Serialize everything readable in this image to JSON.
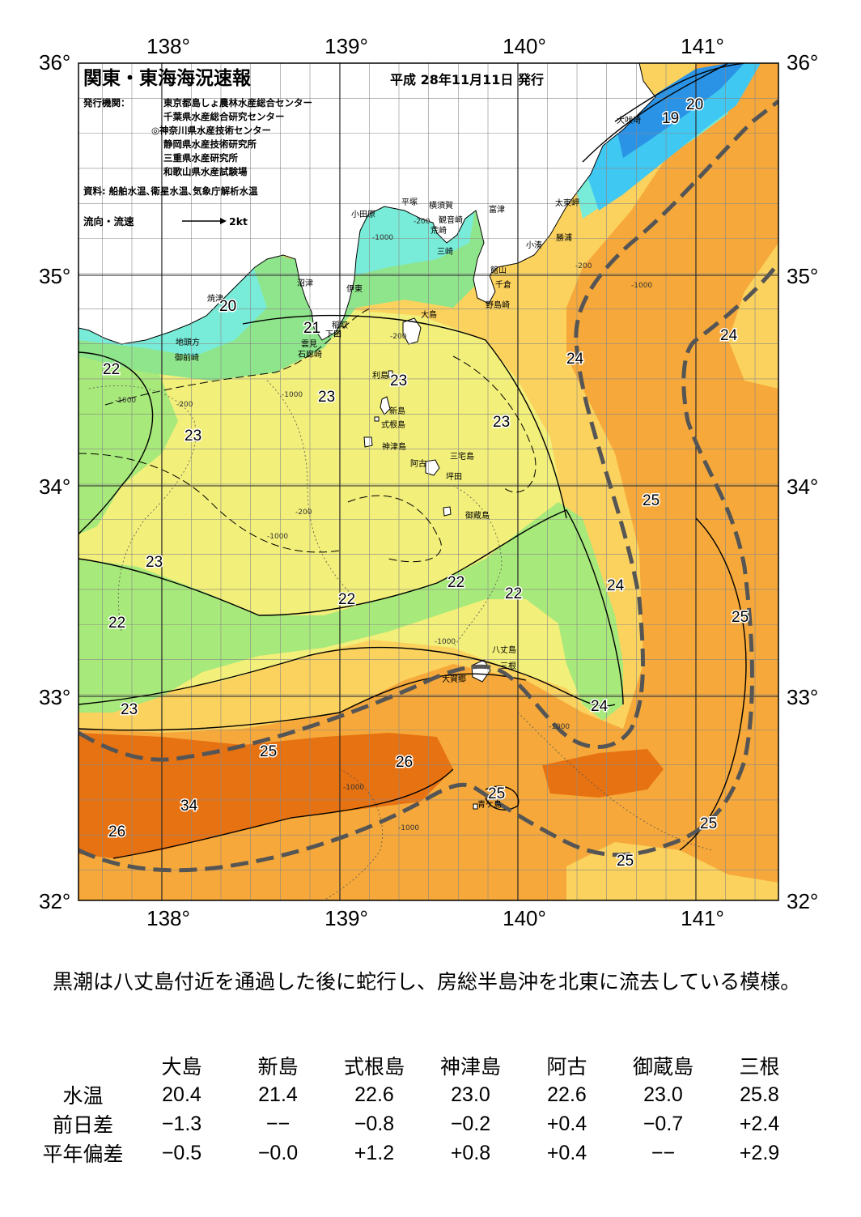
{
  "header": {
    "title": "関東・東海海況速報",
    "date": "平成 28年11月11日 発行",
    "publisher_label": "発行機関：",
    "publishers": [
      "東京都島しょ農林水産総合センター",
      "千葉県水産総合研究センター",
      "◎神奈川県水産技術センター",
      "静岡県水産技術研究所",
      "三重県水産研究所",
      "和歌山県水産試験場"
    ],
    "source": "資料: 船舶水温､衛星水温､気象庁解析水温",
    "flow_legend_label": "流向・流速",
    "flow_legend_value": "2kt"
  },
  "axes": {
    "lon_labels": [
      "138°",
      "139°",
      "140°",
      "141°"
    ],
    "lat_labels": [
      "36°",
      "35°",
      "34°",
      "33°",
      "32°"
    ]
  },
  "places": [
    "犬吠埼",
    "太東岬",
    "勝浦",
    "小湊",
    "富津",
    "観音崎",
    "横須賀",
    "平塚",
    "小田原",
    "荒崎",
    "三崎",
    "館山",
    "千倉",
    "野島崎",
    "沼津",
    "伊東",
    "焼津",
    "稲取",
    "下田",
    "雲見",
    "石廊崎",
    "地頭方",
    "御前崎",
    "大島",
    "利島",
    "新島",
    "式根島",
    "神津島",
    "三宅島",
    "阿古",
    "坪田",
    "御蔵島",
    "八丈島",
    "大賀郷",
    "三根",
    "青ケ島"
  ],
  "isotherm_labels": [
    "19",
    "20",
    "20",
    "21",
    "22",
    "22",
    "22",
    "22",
    "22",
    "23",
    "23",
    "23",
    "23",
    "23",
    "23",
    "24",
    "24",
    "24",
    "24",
    "25",
    "25",
    "25",
    "25",
    "25",
    "25",
    "26",
    "26",
    "34"
  ],
  "depth_labels": [
    "-200",
    "-1000"
  ],
  "colors": {
    "kuroshio_axis": "#555555",
    "t_lt19": "#2a93e6",
    "t_19": "#3fc8f2",
    "t_20": "#78ecd8",
    "t_21": "#8fe58c",
    "t_22": "#a7e97a",
    "t_23": "#f2ef7a",
    "t_24": "#fbd25e",
    "t_25": "#f6a93a",
    "t_26": "#e77212",
    "land": "#ffffff"
  },
  "summary": "黒潮は八丈島付近を通過した後に蛇行し、房総半島沖を北東に流去している模様。",
  "table": {
    "stations": [
      "大島",
      "新島",
      "式根島",
      "神津島",
      "阿古",
      "御蔵島",
      "三根"
    ],
    "rows": [
      {
        "label": "水温",
        "values": [
          "20.4",
          "21.4",
          "22.6",
          "23.0",
          "22.6",
          "23.0",
          "25.8"
        ]
      },
      {
        "label": "前日差",
        "values": [
          "−1.3",
          "−−",
          "−0.8",
          "−0.2",
          "+0.4",
          "−0.7",
          "+2.4"
        ]
      },
      {
        "label": "平年偏差",
        "values": [
          "−0.5",
          "−0.0",
          "+1.2",
          "+0.8",
          "+0.4",
          "−−",
          "+2.9"
        ]
      }
    ]
  }
}
